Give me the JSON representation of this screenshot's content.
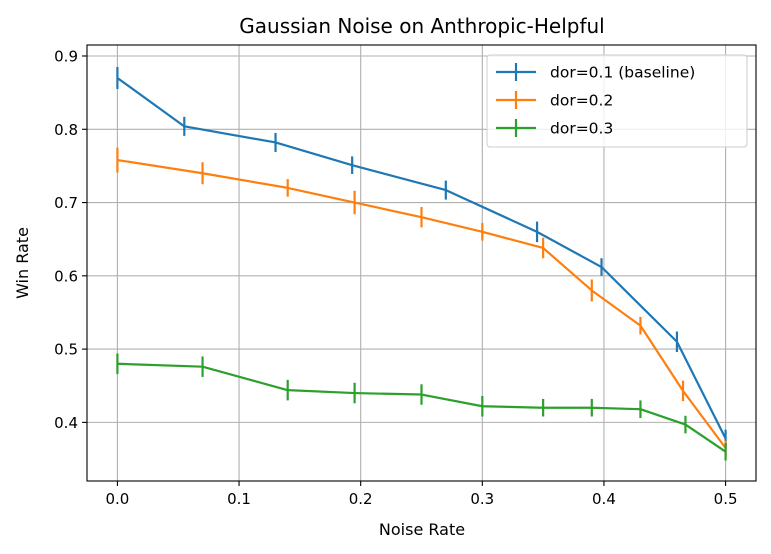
{
  "chart_data": {
    "type": "line",
    "title": "Gaussian Noise on Anthropic-Helpful",
    "xlabel": "Noise Rate",
    "ylabel": "Win Rate",
    "xlim": [
      -0.025,
      0.525
    ],
    "ylim": [
      0.32,
      0.915
    ],
    "xticks": [
      0.0,
      0.1,
      0.2,
      0.3,
      0.4,
      0.5
    ],
    "xtick_labels": [
      "0.0",
      "0.1",
      "0.2",
      "0.3",
      "0.4",
      "0.5"
    ],
    "yticks": [
      0.4,
      0.5,
      0.6,
      0.7,
      0.8,
      0.9
    ],
    "ytick_labels": [
      "0.4",
      "0.5",
      "0.6",
      "0.7",
      "0.8",
      "0.9"
    ],
    "grid": true,
    "legend_position": "top-right",
    "error_bars": true,
    "series": [
      {
        "name": "dor=0.1 (baseline)",
        "color": "#1f77b4",
        "x": [
          0.0,
          0.055,
          0.13,
          0.193,
          0.27,
          0.345,
          0.398,
          0.46,
          0.5
        ],
        "y": [
          0.87,
          0.804,
          0.782,
          0.751,
          0.717,
          0.66,
          0.612,
          0.51,
          0.378
        ],
        "err": [
          0.015,
          0.013,
          0.013,
          0.012,
          0.013,
          0.014,
          0.012,
          0.014,
          0.012
        ]
      },
      {
        "name": "dor=0.2",
        "color": "#ff7f0e",
        "x": [
          0.0,
          0.07,
          0.14,
          0.195,
          0.25,
          0.3,
          0.35,
          0.39,
          0.43,
          0.465,
          0.5
        ],
        "y": [
          0.758,
          0.74,
          0.72,
          0.7,
          0.68,
          0.66,
          0.638,
          0.58,
          0.532,
          0.443,
          0.365
        ],
        "err": [
          0.017,
          0.015,
          0.012,
          0.016,
          0.014,
          0.012,
          0.014,
          0.015,
          0.012,
          0.014,
          0.01
        ]
      },
      {
        "name": "dor=0.3",
        "color": "#2ca02c",
        "x": [
          0.0,
          0.07,
          0.14,
          0.195,
          0.25,
          0.3,
          0.35,
          0.39,
          0.43,
          0.467,
          0.5
        ],
        "y": [
          0.48,
          0.476,
          0.444,
          0.44,
          0.438,
          0.422,
          0.42,
          0.42,
          0.418,
          0.397,
          0.36
        ],
        "err": [
          0.014,
          0.014,
          0.014,
          0.014,
          0.014,
          0.014,
          0.012,
          0.012,
          0.012,
          0.012,
          0.012
        ]
      }
    ]
  }
}
